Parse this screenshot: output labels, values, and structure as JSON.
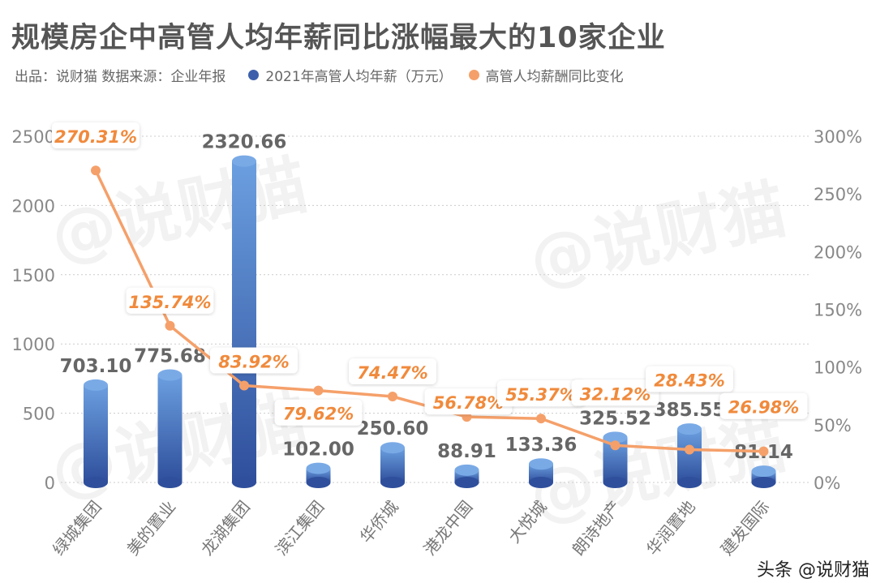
{
  "title": "规模房企中高管人均年薪同比涨幅最大的10家企业",
  "subtitle": "出品：说财猫  数据来源：企业年报",
  "watermark": "@说财猫",
  "footer_mark": "头条 @说财猫",
  "colors": {
    "bar": "#3d5fab",
    "bar_light": "#5b8fd6",
    "line": "#f5a06a",
    "label_pct": "#f08a3c",
    "label_val": "#666666"
  },
  "chart_data": {
    "type": "bar+line",
    "categories": [
      "绿城集团",
      "美的置业",
      "龙湖集团",
      "滨江集团",
      "华侨城",
      "港龙中国",
      "大悦城",
      "朗诗地产",
      "华润置地",
      "建发国际"
    ],
    "series": [
      {
        "name": "2021年高管人均年薪（万元）",
        "type": "bar",
        "axis": "left",
        "values": [
          703.1,
          775.68,
          2320.66,
          102.0,
          250.6,
          88.91,
          133.36,
          325.52,
          385.55,
          81.14
        ],
        "labels": [
          "703.10",
          "775.68",
          "2320.66",
          "102.00",
          "250.60",
          "88.91",
          "133.36",
          "325.52",
          "385.55",
          "81.14"
        ]
      },
      {
        "name": "高管人均薪酬同比变化",
        "type": "line",
        "axis": "right",
        "values": [
          270.31,
          135.74,
          83.92,
          79.62,
          74.47,
          56.78,
          55.37,
          32.12,
          28.43,
          26.98
        ],
        "labels": [
          "270.31%",
          "135.74%",
          "83.92%",
          "79.62%",
          "74.47%",
          "56.78%",
          "55.37%",
          "32.12%",
          "28.43%",
          "26.98%"
        ]
      }
    ],
    "left_axis": {
      "range": [
        0,
        2500
      ],
      "ticks": [
        "0",
        "500",
        "1000",
        "1500",
        "2000",
        "2500"
      ]
    },
    "right_axis": {
      "range": [
        0,
        300
      ],
      "ticks": [
        "0%",
        "50%",
        "100%",
        "150%",
        "200%",
        "250%",
        "300%"
      ]
    },
    "grid": true,
    "legend_placement": "top"
  }
}
